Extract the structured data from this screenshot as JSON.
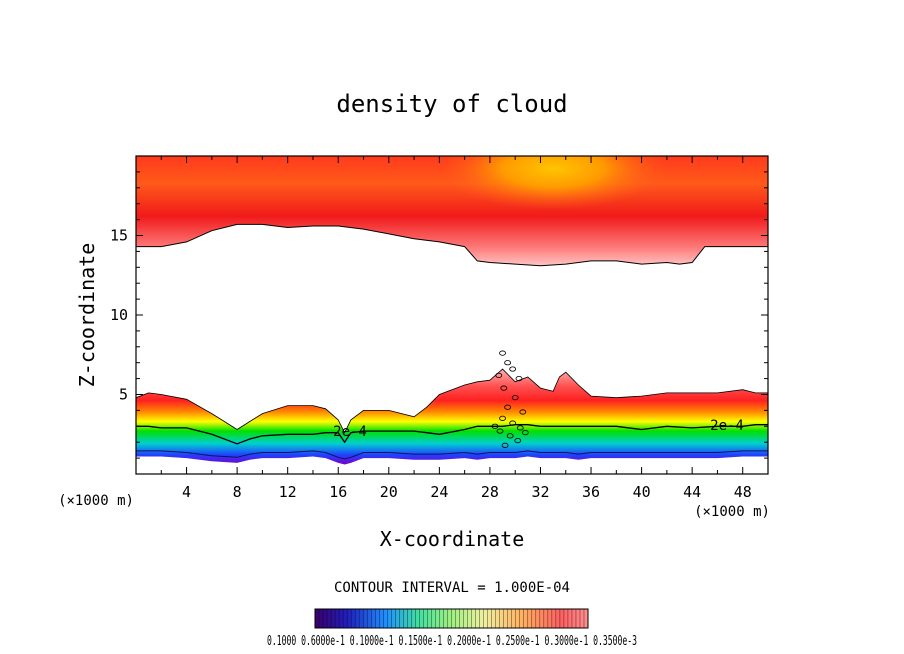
{
  "chart_data": {
    "type": "heatmap",
    "title": "density of cloud",
    "xlabel": "X-coordinate",
    "ylabel": "Z-coordinate",
    "x_unit": "(×1000 m)",
    "x_ticks": [
      4,
      8,
      12,
      16,
      20,
      24,
      28,
      32,
      36,
      40,
      44,
      48
    ],
    "y_ticks": [
      5,
      10,
      15
    ],
    "xlim": [
      0,
      50
    ],
    "ylim": [
      0,
      20
    ],
    "contour_interval_text": "CONTOUR INTERVAL = 1.000E-04",
    "contour_label": "2e-4",
    "colorbar_text": "0.1000 0.6000e-1 0.1000e-1 0.1500e-1 0.2000e-1 0.2500e-1 0.3000e-1 0.3500e-3",
    "upper_layer": {
      "x": [
        0,
        2,
        4,
        6,
        8,
        10,
        12,
        14,
        16,
        18,
        20,
        22,
        24,
        26,
        27,
        28,
        30,
        32,
        34,
        36,
        38,
        40,
        42,
        43,
        44,
        45,
        46,
        48,
        50
      ],
      "base_z": [
        14.3,
        14.3,
        14.6,
        15.3,
        15.7,
        15.7,
        15.5,
        15.6,
        15.6,
        15.4,
        15.1,
        14.8,
        14.6,
        14.3,
        13.4,
        13.3,
        13.2,
        13.1,
        13.2,
        13.4,
        13.4,
        13.2,
        13.3,
        13.2,
        13.3,
        14.3,
        14.3,
        14.3,
        14.3
      ]
    },
    "lower_layer": {
      "x": [
        0,
        1,
        2,
        4,
        6,
        8,
        9,
        10,
        12,
        14,
        15,
        16,
        16.5,
        17,
        18,
        20,
        22,
        23,
        24,
        26,
        27,
        28,
        29,
        30,
        31,
        32,
        33,
        33.5,
        34,
        35,
        36,
        38,
        40,
        42,
        44,
        46,
        48,
        49,
        50
      ],
      "top_z": [
        4.8,
        5.1,
        5.0,
        4.7,
        3.8,
        2.8,
        3.3,
        3.8,
        4.3,
        4.3,
        4.1,
        3.4,
        2.6,
        3.4,
        4.0,
        4.0,
        3.6,
        4.2,
        5.0,
        5.6,
        5.8,
        5.9,
        6.6,
        5.8,
        6.1,
        5.4,
        5.2,
        6.1,
        6.4,
        5.6,
        4.9,
        4.8,
        4.9,
        5.1,
        5.1,
        5.1,
        5.3,
        5.1,
        5.1
      ],
      "contour_2e4_z": [
        3.0,
        3.0,
        2.9,
        2.9,
        2.5,
        1.9,
        2.2,
        2.4,
        2.5,
        2.5,
        2.6,
        2.6,
        2.0,
        2.6,
        2.7,
        2.7,
        2.7,
        2.6,
        2.5,
        2.8,
        3.0,
        3.0,
        3.0,
        3.1,
        3.1,
        3.0,
        3.0,
        3.0,
        3.0,
        3.0,
        3.0,
        3.0,
        2.8,
        3.0,
        2.9,
        3.0,
        3.0,
        3.1,
        3.1
      ],
      "base_z": [
        1.1,
        1.1,
        1.1,
        1.0,
        0.8,
        0.7,
        0.9,
        1.0,
        1.0,
        1.1,
        1.0,
        0.7,
        0.6,
        0.7,
        1.0,
        1.0,
        0.9,
        0.9,
        0.9,
        1.0,
        0.9,
        1.0,
        1.0,
        1.0,
        1.1,
        1.0,
        1.0,
        1.0,
        1.0,
        0.9,
        1.0,
        1.0,
        1.0,
        1.0,
        1.0,
        1.0,
        1.1,
        1.1,
        1.1
      ]
    }
  }
}
